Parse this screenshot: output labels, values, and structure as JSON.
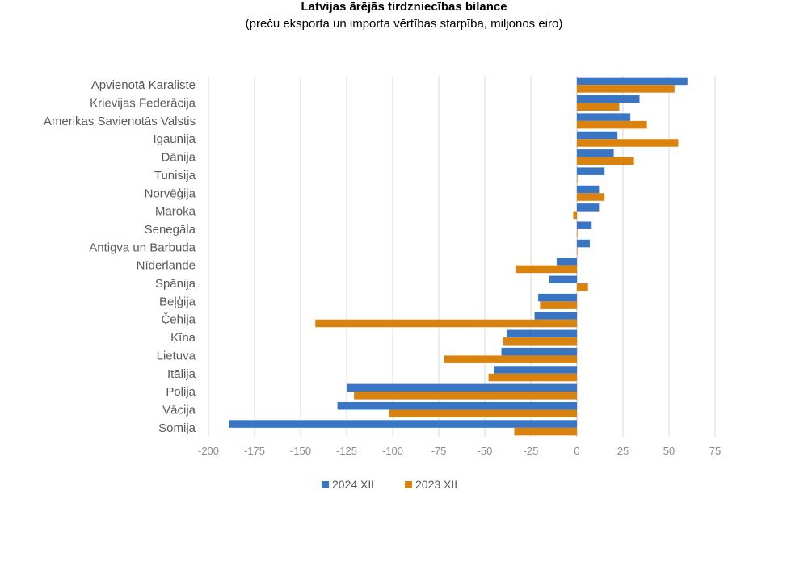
{
  "title": "Latvijas ārējās tirdzniecības bilance",
  "subtitle": "(preču eksporta un importa vērtības starpība, miljonos eiro)",
  "chart_data": {
    "type": "bar",
    "orientation": "horizontal",
    "title": "Latvijas ārējās tirdzniecības bilance",
    "subtitle": "(preču eksporta un importa vērtības starpība, miljonos eiro)",
    "categories": [
      "Apvienotā Karaliste",
      "Krievijas Federācija",
      "Amerikas Savienotās Valstis",
      "Igaunija",
      "Dānija",
      "Tunisija",
      "Norvēģija",
      "Maroka",
      "Senegāla",
      "Antigva un Barbuda",
      "Nīderlande",
      "Spānija",
      "Beļģija",
      "Čehija",
      "Ķīna",
      "Lietuva",
      "Itālija",
      "Polija",
      "Vācija",
      "Somija"
    ],
    "series": [
      {
        "name": "2024 XII",
        "color": "#3A75C4",
        "values": [
          60,
          34,
          29,
          22,
          20,
          15,
          12,
          12,
          8,
          7,
          -11,
          -15,
          -21,
          -23,
          -38,
          -41,
          -45,
          -125,
          -130,
          -189
        ]
      },
      {
        "name": "2023 XII",
        "color": "#D9820E",
        "values": [
          53,
          23,
          38,
          55,
          31,
          0.3,
          15,
          -2,
          0.3,
          0.3,
          -33,
          6,
          -20,
          -142,
          -40,
          -72,
          -48,
          -121,
          -102,
          -34
        ]
      }
    ],
    "xlim": [
      -200,
      75
    ],
    "xticks": [
      -200,
      -175,
      -150,
      -125,
      -100,
      -75,
      -50,
      -25,
      0,
      25,
      50,
      75
    ],
    "grid": "vertical",
    "legend": "bottom-center"
  }
}
